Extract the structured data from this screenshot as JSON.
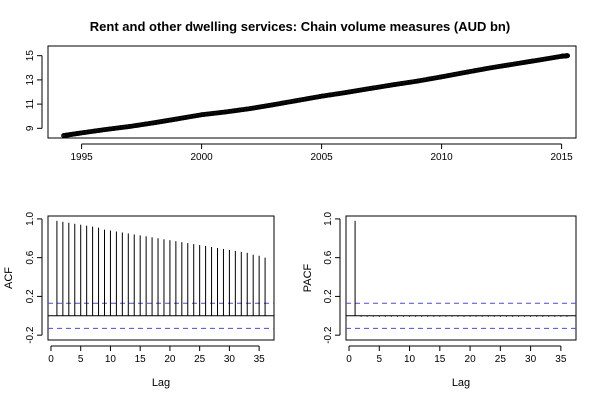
{
  "chart_data": [
    {
      "type": "line",
      "title": "Rent and other dwelling services: Chain volume measures (AUD bn)",
      "xlabel": "",
      "ylabel": "",
      "xlim": [
        1993.6,
        2015.6
      ],
      "ylim": [
        8.2,
        15.8
      ],
      "x_ticks": [
        1995,
        2000,
        2005,
        2010,
        2015
      ],
      "x_tick_labels": [
        "1995",
        "2000",
        "2005",
        "2010",
        "2015"
      ],
      "y_ticks": [
        9,
        11,
        13,
        15
      ],
      "y_tick_labels": [
        "9",
        "11",
        "13",
        "15"
      ],
      "grid": false,
      "series": [
        {
          "marker": "open-circle",
          "x": [
            1994.25,
            1995.0,
            1996.0,
            1997.0,
            1998.0,
            1999.0,
            2000.0,
            2001.0,
            2002.0,
            2003.0,
            2004.0,
            2005.0,
            2006.0,
            2007.0,
            2008.0,
            2009.0,
            2010.0,
            2011.0,
            2012.0,
            2013.0,
            2014.0,
            2015.0,
            2015.25
          ],
          "y": [
            8.4,
            8.62,
            8.9,
            9.15,
            9.45,
            9.78,
            10.12,
            10.35,
            10.62,
            10.95,
            11.3,
            11.65,
            11.95,
            12.28,
            12.6,
            12.9,
            13.25,
            13.62,
            13.98,
            14.3,
            14.62,
            14.95,
            15.0
          ]
        }
      ]
    },
    {
      "type": "bar",
      "xlabel": "Lag",
      "ylabel": "ACF",
      "xlim": [
        -0.5,
        37.5
      ],
      "ylim": [
        -0.25,
        1.03
      ],
      "x_ticks": [
        0,
        5,
        10,
        15,
        20,
        25,
        30,
        35
      ],
      "x_tick_labels": [
        "0",
        "5",
        "10",
        "15",
        "20",
        "25",
        "30",
        "35"
      ],
      "y_ticks": [
        -0.2,
        0.2,
        0.6,
        1.0
      ],
      "y_tick_labels": [
        "-0.2",
        "0.2",
        "0.6",
        "1.0"
      ],
      "confidence_bound": 0.13,
      "confidence_color": "#4b4bd6",
      "lags": [
        1,
        2,
        3,
        4,
        5,
        6,
        7,
        8,
        9,
        10,
        11,
        12,
        13,
        14,
        15,
        16,
        17,
        18,
        19,
        20,
        21,
        22,
        23,
        24,
        25,
        26,
        27,
        28,
        29,
        30,
        31,
        32,
        33,
        34,
        35,
        36
      ],
      "values": [
        0.98,
        0.97,
        0.96,
        0.95,
        0.94,
        0.93,
        0.92,
        0.91,
        0.89,
        0.88,
        0.87,
        0.86,
        0.85,
        0.84,
        0.83,
        0.82,
        0.81,
        0.8,
        0.79,
        0.78,
        0.77,
        0.76,
        0.75,
        0.74,
        0.73,
        0.72,
        0.71,
        0.7,
        0.69,
        0.68,
        0.67,
        0.66,
        0.65,
        0.63,
        0.62,
        0.6
      ]
    },
    {
      "type": "bar",
      "xlabel": "Lag",
      "ylabel": "PACF",
      "xlim": [
        -0.5,
        37.5
      ],
      "ylim": [
        -0.25,
        1.03
      ],
      "x_ticks": [
        0,
        5,
        10,
        15,
        20,
        25,
        30,
        35
      ],
      "x_tick_labels": [
        "0",
        "5",
        "10",
        "15",
        "20",
        "25",
        "30",
        "35"
      ],
      "y_ticks": [
        -0.2,
        0.2,
        0.6,
        1.0
      ],
      "y_tick_labels": [
        "-0.2",
        "0.2",
        "0.6",
        "1.0"
      ],
      "confidence_bound": 0.13,
      "confidence_color": "#4b4bd6",
      "lags": [
        1,
        2,
        3,
        4,
        5,
        6,
        7,
        8,
        9,
        10,
        11,
        12,
        13,
        14,
        15,
        16,
        17,
        18,
        19,
        20,
        21,
        22,
        23,
        24,
        25,
        26,
        27,
        28,
        29,
        30,
        31,
        32,
        33,
        34,
        35,
        36
      ],
      "values": [
        0.98,
        -0.01,
        0.0,
        -0.01,
        0.0,
        0.0,
        -0.01,
        0.0,
        0.0,
        0.0,
        -0.01,
        0.0,
        0.0,
        0.0,
        0.0,
        -0.01,
        0.0,
        0.0,
        0.0,
        0.0,
        0.0,
        -0.01,
        0.0,
        0.0,
        0.0,
        0.0,
        0.0,
        0.0,
        -0.01,
        0.0,
        0.0,
        0.0,
        0.0,
        0.0,
        0.0,
        0.0
      ]
    }
  ]
}
